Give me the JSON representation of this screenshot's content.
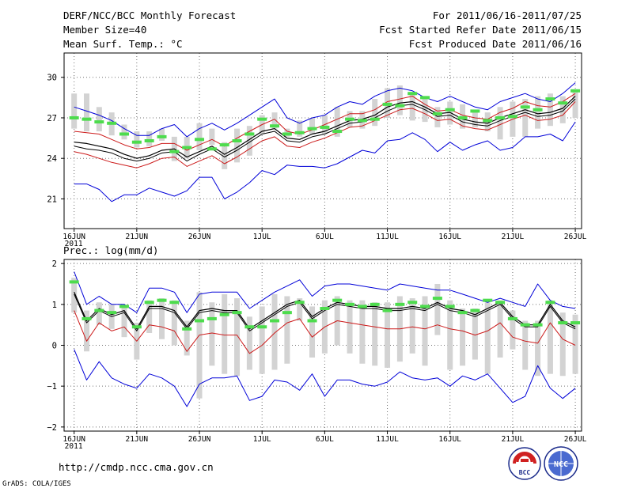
{
  "header": {
    "title": "DERF/NCC/BCC Monthly Forecast",
    "member": "Member Size=40",
    "forecast_period": "For 2011/06/16-2011/07/25",
    "started_refer": "Fcst Started Refer Date 2011/06/15",
    "produced": "Fcst Produced Date 2011/06/16"
  },
  "footer": {
    "url": "http://cmdp.ncc.cma.gov.cn",
    "credit": "GrADS: COLA/IGES",
    "logo_left_text": "BCC",
    "logo_right_text": "NCC"
  },
  "colors": {
    "frame": "#000000",
    "grid": "#707070",
    "box": "#d3d3d3",
    "median": "#4ddc4d",
    "upper_lower": "#0000d8",
    "percentile": "#cc1a1a",
    "mean": "#000000"
  },
  "chart_data": [
    {
      "type": "line",
      "title": "Mean Surf. Temp.: °C",
      "x_labels": [
        "16JUN",
        "21JUN",
        "26JUN",
        "1JUL",
        "6JUL",
        "11JUL",
        "16JUL",
        "21JUL",
        "26JUL"
      ],
      "x_label_indices": [
        0,
        5,
        10,
        15,
        20,
        25,
        30,
        35,
        40
      ],
      "year_label": "2011",
      "x_range": [
        -0.8,
        40.5
      ],
      "ylim": [
        18.8,
        31.8
      ],
      "yticks": [
        21,
        24,
        27,
        30
      ],
      "ytick_labels": [
        "21",
        "24",
        "27",
        "30"
      ],
      "grid": true,
      "series": [
        {
          "name": "upper",
          "values": [
            27.8,
            27.5,
            27.2,
            26.8,
            26.2,
            25.7,
            25.7,
            26.2,
            26.5,
            25.6,
            26.2,
            26.6,
            26.1,
            26.6,
            27.2,
            27.8,
            28.4,
            27.0,
            26.6,
            27.0,
            27.2,
            27.8,
            28.2,
            28.0,
            28.6,
            29.0,
            29.2,
            29.0,
            28.5,
            28.2,
            28.6,
            28.2,
            27.8,
            27.6,
            28.2,
            28.5,
            28.8,
            28.4,
            28.2,
            28.8,
            29.6
          ]
        },
        {
          "name": "p75",
          "values": [
            26.0,
            25.9,
            25.8,
            25.4,
            25.0,
            24.7,
            24.8,
            25.1,
            25.1,
            24.6,
            25.0,
            25.4,
            24.9,
            25.5,
            26.0,
            26.5,
            26.9,
            26.0,
            25.8,
            26.1,
            26.5,
            26.9,
            27.3,
            27.3,
            27.6,
            28.2,
            28.4,
            28.6,
            28.0,
            27.5,
            27.6,
            27.2,
            27.0,
            26.9,
            27.4,
            27.7,
            28.2,
            27.9,
            27.8,
            28.2,
            28.8
          ]
        },
        {
          "name": "mean",
          "values": [
            25.2,
            25.1,
            24.9,
            24.7,
            24.3,
            24.0,
            24.2,
            24.6,
            24.7,
            24.1,
            24.5,
            24.9,
            24.3,
            24.8,
            25.4,
            26.0,
            26.2,
            25.5,
            25.4,
            25.8,
            26.0,
            26.4,
            26.8,
            26.9,
            27.2,
            27.8,
            28.1,
            28.2,
            27.8,
            27.3,
            27.4,
            26.9,
            26.7,
            26.6,
            27.0,
            27.3,
            27.6,
            27.3,
            27.4,
            27.7,
            28.6
          ]
        },
        {
          "name": "p25",
          "values": [
            24.9,
            24.7,
            24.6,
            24.4,
            24.0,
            23.8,
            24.0,
            24.4,
            24.5,
            23.8,
            24.3,
            24.7,
            24.1,
            24.6,
            25.2,
            25.8,
            26.0,
            25.3,
            25.2,
            25.6,
            25.8,
            26.2,
            26.6,
            26.7,
            27.0,
            27.5,
            27.9,
            28.0,
            27.6,
            27.1,
            27.2,
            26.7,
            26.5,
            26.4,
            26.8,
            27.1,
            27.4,
            27.1,
            27.2,
            27.5,
            28.4
          ]
        },
        {
          "name": "p10",
          "values": [
            24.5,
            24.3,
            24.0,
            23.7,
            23.5,
            23.3,
            23.6,
            24.0,
            24.1,
            23.4,
            23.8,
            24.2,
            23.6,
            24.1,
            24.7,
            25.3,
            25.6,
            24.9,
            24.8,
            25.2,
            25.5,
            25.9,
            26.3,
            26.4,
            26.8,
            27.2,
            27.6,
            27.7,
            27.3,
            26.8,
            26.9,
            26.4,
            26.2,
            26.1,
            26.5,
            26.9,
            27.2,
            26.8,
            26.9,
            27.2,
            28.2
          ]
        },
        {
          "name": "lower",
          "values": [
            22.1,
            22.1,
            21.7,
            20.8,
            21.3,
            21.3,
            21.8,
            21.5,
            21.2,
            21.6,
            22.6,
            22.6,
            21.0,
            21.5,
            22.2,
            23.1,
            22.8,
            23.5,
            23.4,
            23.4,
            23.3,
            23.6,
            24.1,
            24.6,
            24.4,
            25.3,
            25.4,
            25.9,
            25.4,
            24.5,
            25.2,
            24.6,
            25.0,
            25.3,
            24.6,
            24.8,
            25.6,
            25.6,
            25.8,
            25.3,
            26.7
          ]
        }
      ],
      "boxes_low": [
        26.2,
        26.0,
        26.0,
        25.7,
        25.4,
        24.8,
        24.9,
        25.3,
        23.8,
        24.0,
        24.6,
        25.0,
        23.2,
        23.7,
        24.2,
        25.8,
        26.2,
        25.6,
        25.6,
        25.8,
        25.8,
        25.6,
        26.3,
        26.2,
        26.4,
        27.0,
        27.2,
        26.8,
        26.7,
        26.3,
        26.5,
        26.2,
        26.3,
        26.0,
        25.4,
        25.6,
        25.6,
        26.2,
        26.4,
        26.6,
        27.0
      ],
      "boxes_high": [
        28.8,
        28.8,
        27.8,
        27.4,
        26.5,
        26.0,
        26.0,
        26.2,
        25.6,
        25.6,
        26.6,
        26.2,
        25.2,
        26.2,
        26.4,
        27.2,
        27.4,
        26.2,
        26.8,
        27.0,
        27.2,
        27.8,
        27.5,
        27.5,
        28.4,
        29.2,
        29.4,
        28.8,
        28.4,
        27.8,
        28.2,
        28.0,
        27.6,
        27.4,
        27.8,
        28.2,
        28.4,
        28.6,
        28.8,
        28.6,
        29.0
      ],
      "medians": [
        27.0,
        26.9,
        26.7,
        26.6,
        25.8,
        25.2,
        25.3,
        25.6,
        24.5,
        24.8,
        25.4,
        24.7,
        25.0,
        25.3,
        25.8,
        26.9,
        26.4,
        25.8,
        25.9,
        26.2,
        26.3,
        26.0,
        26.9,
        26.8,
        26.9,
        28.0,
        27.9,
        28.8,
        28.5,
        27.3,
        27.6,
        27.0,
        27.5,
        26.8,
        27.0,
        27.1,
        27.8,
        27.6,
        28.4,
        28.1,
        29.0
      ]
    },
    {
      "type": "line",
      "title": "Prec.: log(mm/d)",
      "x_labels": [
        "16JUN",
        "21JUN",
        "26JUN",
        "1JUL",
        "6JUL",
        "11JUL",
        "16JUL",
        "21JUL",
        "26JUL"
      ],
      "x_label_indices": [
        0,
        5,
        10,
        15,
        20,
        25,
        30,
        35,
        40
      ],
      "year_label": "2011",
      "x_range": [
        -0.8,
        40.5
      ],
      "ylim": [
        -2.1,
        2.1
      ],
      "yticks": [
        -2,
        -1,
        0,
        1,
        2
      ],
      "ytick_labels": [
        "−2",
        "−1",
        "0",
        "1",
        "2"
      ],
      "grid": true,
      "series": [
        {
          "name": "upper",
          "values": [
            1.8,
            1.0,
            1.2,
            1.0,
            1.0,
            0.8,
            1.4,
            1.4,
            1.3,
            0.8,
            1.25,
            1.3,
            1.3,
            1.3,
            0.9,
            1.1,
            1.3,
            1.45,
            1.6,
            1.2,
            1.45,
            1.5,
            1.5,
            1.45,
            1.4,
            1.35,
            1.5,
            1.45,
            1.4,
            1.35,
            1.35,
            1.25,
            1.15,
            1.05,
            1.15,
            1.05,
            0.95,
            1.5,
            1.1,
            0.95,
            0.9
          ]
        },
        {
          "name": "mean",
          "values": [
            1.3,
            0.6,
            0.9,
            0.75,
            0.85,
            0.4,
            0.95,
            0.95,
            0.85,
            0.45,
            0.85,
            0.9,
            0.85,
            0.85,
            0.4,
            0.6,
            0.8,
            1.0,
            1.1,
            0.7,
            0.9,
            1.05,
            1.0,
            0.95,
            0.95,
            0.9,
            0.9,
            0.95,
            0.9,
            1.05,
            0.9,
            0.85,
            0.75,
            0.9,
            1.05,
            0.7,
            0.5,
            0.5,
            1.0,
            0.6,
            0.45
          ]
        },
        {
          "name": "p25",
          "values": [
            1.25,
            0.55,
            0.85,
            0.7,
            0.8,
            0.35,
            0.9,
            0.9,
            0.8,
            0.4,
            0.8,
            0.85,
            0.8,
            0.8,
            0.35,
            0.55,
            0.75,
            0.95,
            1.05,
            0.65,
            0.85,
            1.0,
            0.95,
            0.9,
            0.9,
            0.85,
            0.85,
            0.9,
            0.85,
            1.0,
            0.85,
            0.8,
            0.7,
            0.85,
            1.0,
            0.65,
            0.45,
            0.45,
            0.95,
            0.55,
            0.4
          ]
        },
        {
          "name": "p10",
          "values": [
            0.85,
            0.1,
            0.55,
            0.35,
            0.45,
            0.1,
            0.5,
            0.45,
            0.35,
            -0.15,
            0.25,
            0.3,
            0.25,
            0.25,
            -0.2,
            0.0,
            0.3,
            0.55,
            0.65,
            0.2,
            0.45,
            0.6,
            0.55,
            0.5,
            0.45,
            0.4,
            0.4,
            0.45,
            0.4,
            0.5,
            0.4,
            0.35,
            0.25,
            0.35,
            0.55,
            0.2,
            0.1,
            0.05,
            0.55,
            0.15,
            0.0
          ]
        },
        {
          "name": "lower",
          "values": [
            -0.1,
            -0.85,
            -0.4,
            -0.8,
            -0.95,
            -1.05,
            -0.7,
            -0.8,
            -1.0,
            -1.5,
            -0.95,
            -0.8,
            -0.8,
            -0.75,
            -1.35,
            -1.25,
            -0.85,
            -0.9,
            -1.1,
            -0.7,
            -1.25,
            -0.85,
            -0.85,
            -0.95,
            -1.0,
            -0.9,
            -0.65,
            -0.8,
            -0.85,
            -0.8,
            -1.0,
            -0.75,
            -0.85,
            -0.7,
            -1.05,
            -1.4,
            -1.25,
            -0.5,
            -1.05,
            -1.3,
            -1.05
          ]
        }
      ],
      "boxes_low": [
        0.8,
        -0.15,
        0.5,
        0.4,
        0.2,
        -0.35,
        0.3,
        0.15,
        0.0,
        -0.25,
        -1.3,
        -0.5,
        -0.7,
        -0.75,
        -0.6,
        -0.7,
        -0.6,
        -0.45,
        0.6,
        -0.3,
        -0.2,
        0.0,
        -0.2,
        -0.45,
        -0.5,
        -0.55,
        -0.4,
        -0.2,
        -0.5,
        0.25,
        -0.6,
        -0.5,
        -0.35,
        -0.7,
        -0.3,
        -0.1,
        -0.6,
        -0.75,
        -0.7,
        -0.75,
        -0.7
      ],
      "boxes_high": [
        1.65,
        0.85,
        1.05,
        1.0,
        1.0,
        0.55,
        1.1,
        1.15,
        1.1,
        0.6,
        1.3,
        1.05,
        1.25,
        1.15,
        0.7,
        0.95,
        1.25,
        1.2,
        1.15,
        0.95,
        1.1,
        1.2,
        1.1,
        1.1,
        1.05,
        1.05,
        1.2,
        1.15,
        1.2,
        1.5,
        1.1,
        0.9,
        0.9,
        1.05,
        1.1,
        0.85,
        0.6,
        0.6,
        1.1,
        0.8,
        0.75
      ],
      "medians": [
        1.55,
        0.65,
        0.85,
        0.8,
        0.95,
        0.45,
        1.05,
        1.1,
        1.05,
        0.4,
        0.6,
        0.65,
        0.75,
        0.8,
        0.45,
        0.45,
        0.6,
        0.8,
        1.05,
        0.6,
        0.9,
        1.1,
        1.0,
        0.95,
        1.0,
        0.85,
        1.0,
        1.05,
        0.95,
        1.15,
        0.95,
        0.8,
        0.85,
        1.1,
        1.05,
        0.65,
        0.5,
        0.5,
        1.05,
        0.55,
        0.55
      ]
    }
  ]
}
